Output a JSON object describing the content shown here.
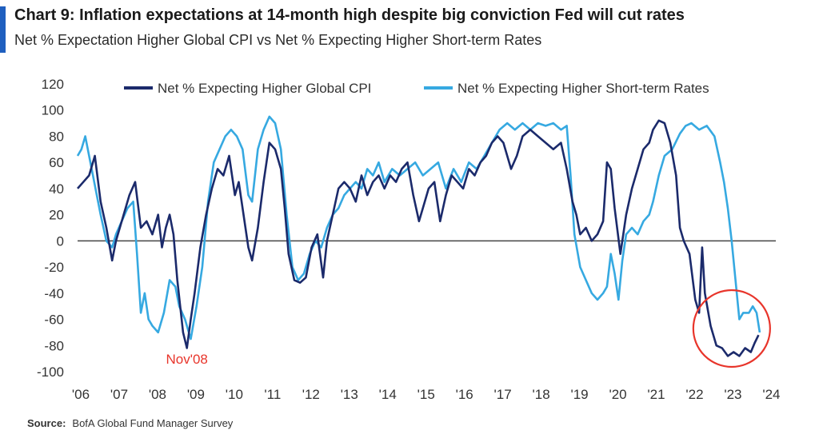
{
  "header": {
    "title": "Chart 9: Inflation expectations at 14-month  high despite big conviction Fed will cut rates",
    "subtitle": "Net % Expectation Higher Global CPI vs Net % Expecting Higher Short-term Rates",
    "accent_color": "#1f5fbf"
  },
  "footer": {
    "source_label": "Source:",
    "source_text": "BofA Global Fund Manager Survey"
  },
  "chart_data": {
    "type": "line",
    "title": "",
    "xlabel": "",
    "ylabel": "",
    "ylim": [
      -100,
      120
    ],
    "yticks": [
      -100,
      -80,
      -60,
      -40,
      -20,
      0,
      20,
      40,
      60,
      80,
      100,
      120
    ],
    "xlim": [
      2006,
      2024.2
    ],
    "xticks": [
      {
        "value": 2006,
        "label": "'06"
      },
      {
        "value": 2007,
        "label": "'07"
      },
      {
        "value": 2008,
        "label": "'08"
      },
      {
        "value": 2009,
        "label": "'09"
      },
      {
        "value": 2010,
        "label": "'10"
      },
      {
        "value": 2011,
        "label": "'11"
      },
      {
        "value": 2012,
        "label": "'12"
      },
      {
        "value": 2013,
        "label": "'13"
      },
      {
        "value": 2014,
        "label": "'14"
      },
      {
        "value": 2015,
        "label": "'15"
      },
      {
        "value": 2016,
        "label": "'16"
      },
      {
        "value": 2017,
        "label": "'17"
      },
      {
        "value": 2018,
        "label": "'18"
      },
      {
        "value": 2019,
        "label": "'19"
      },
      {
        "value": 2020,
        "label": "'20"
      },
      {
        "value": 2021,
        "label": "'21"
      },
      {
        "value": 2022,
        "label": "'22"
      },
      {
        "value": 2023,
        "label": "'23"
      },
      {
        "value": 2024,
        "label": "'24"
      }
    ],
    "grid": false,
    "zero_line": true,
    "legend_position": "top",
    "series": [
      {
        "name": "Net % Expecting Higher Global CPI",
        "color": "#1b2a6b",
        "points": [
          [
            2006.0,
            40
          ],
          [
            2006.15,
            45
          ],
          [
            2006.3,
            50
          ],
          [
            2006.45,
            65
          ],
          [
            2006.6,
            30
          ],
          [
            2006.75,
            10
          ],
          [
            2006.9,
            -15
          ],
          [
            2007.0,
            0
          ],
          [
            2007.2,
            20
          ],
          [
            2007.35,
            35
          ],
          [
            2007.5,
            45
          ],
          [
            2007.65,
            10
          ],
          [
            2007.8,
            15
          ],
          [
            2007.95,
            5
          ],
          [
            2008.1,
            20
          ],
          [
            2008.2,
            -5
          ],
          [
            2008.3,
            10
          ],
          [
            2008.4,
            20
          ],
          [
            2008.5,
            5
          ],
          [
            2008.6,
            -30
          ],
          [
            2008.75,
            -70
          ],
          [
            2008.85,
            -82
          ],
          [
            2008.95,
            -60
          ],
          [
            2009.05,
            -40
          ],
          [
            2009.2,
            -5
          ],
          [
            2009.35,
            20
          ],
          [
            2009.5,
            40
          ],
          [
            2009.65,
            55
          ],
          [
            2009.8,
            50
          ],
          [
            2009.95,
            65
          ],
          [
            2010.1,
            35
          ],
          [
            2010.2,
            45
          ],
          [
            2010.3,
            25
          ],
          [
            2010.45,
            -5
          ],
          [
            2010.55,
            -15
          ],
          [
            2010.7,
            10
          ],
          [
            2010.85,
            45
          ],
          [
            2011.0,
            75
          ],
          [
            2011.15,
            70
          ],
          [
            2011.3,
            55
          ],
          [
            2011.4,
            25
          ],
          [
            2011.5,
            -10
          ],
          [
            2011.65,
            -30
          ],
          [
            2011.8,
            -32
          ],
          [
            2011.95,
            -28
          ],
          [
            2012.1,
            -5
          ],
          [
            2012.25,
            5
          ],
          [
            2012.4,
            -28
          ],
          [
            2012.5,
            0
          ],
          [
            2012.65,
            20
          ],
          [
            2012.8,
            40
          ],
          [
            2012.95,
            45
          ],
          [
            2013.1,
            40
          ],
          [
            2013.25,
            30
          ],
          [
            2013.4,
            50
          ],
          [
            2013.55,
            35
          ],
          [
            2013.7,
            45
          ],
          [
            2013.85,
            50
          ],
          [
            2014.0,
            40
          ],
          [
            2014.15,
            50
          ],
          [
            2014.3,
            45
          ],
          [
            2014.45,
            55
          ],
          [
            2014.6,
            60
          ],
          [
            2014.75,
            35
          ],
          [
            2014.9,
            15
          ],
          [
            2015.0,
            25
          ],
          [
            2015.15,
            40
          ],
          [
            2015.3,
            45
          ],
          [
            2015.45,
            15
          ],
          [
            2015.6,
            35
          ],
          [
            2015.75,
            50
          ],
          [
            2015.9,
            45
          ],
          [
            2016.05,
            40
          ],
          [
            2016.2,
            55
          ],
          [
            2016.35,
            50
          ],
          [
            2016.5,
            60
          ],
          [
            2016.65,
            65
          ],
          [
            2016.8,
            75
          ],
          [
            2016.95,
            80
          ],
          [
            2017.1,
            75
          ],
          [
            2017.3,
            55
          ],
          [
            2017.45,
            65
          ],
          [
            2017.6,
            80
          ],
          [
            2017.8,
            85
          ],
          [
            2018.0,
            80
          ],
          [
            2018.2,
            75
          ],
          [
            2018.4,
            70
          ],
          [
            2018.6,
            75
          ],
          [
            2018.75,
            55
          ],
          [
            2018.9,
            30
          ],
          [
            2019.0,
            20
          ],
          [
            2019.1,
            5
          ],
          [
            2019.25,
            10
          ],
          [
            2019.4,
            0
          ],
          [
            2019.55,
            5
          ],
          [
            2019.7,
            15
          ],
          [
            2019.8,
            60
          ],
          [
            2019.9,
            55
          ],
          [
            2020.0,
            25
          ],
          [
            2020.15,
            -10
          ],
          [
            2020.3,
            20
          ],
          [
            2020.45,
            40
          ],
          [
            2020.6,
            55
          ],
          [
            2020.75,
            70
          ],
          [
            2020.9,
            75
          ],
          [
            2021.0,
            85
          ],
          [
            2021.15,
            92
          ],
          [
            2021.3,
            90
          ],
          [
            2021.45,
            75
          ],
          [
            2021.6,
            50
          ],
          [
            2021.7,
            10
          ],
          [
            2021.8,
            0
          ],
          [
            2021.95,
            -10
          ],
          [
            2022.1,
            -45
          ],
          [
            2022.2,
            -55
          ],
          [
            2022.28,
            -5
          ],
          [
            2022.35,
            -40
          ],
          [
            2022.5,
            -65
          ],
          [
            2022.65,
            -80
          ],
          [
            2022.8,
            -82
          ],
          [
            2022.95,
            -88
          ],
          [
            2023.1,
            -85
          ],
          [
            2023.25,
            -88
          ],
          [
            2023.4,
            -82
          ],
          [
            2023.55,
            -85
          ],
          [
            2023.65,
            -78
          ],
          [
            2023.75,
            -72
          ]
        ]
      },
      {
        "name": "Net % Expecting Higher Short-term Rates",
        "color": "#36a9e1",
        "points": [
          [
            2006.0,
            65
          ],
          [
            2006.1,
            70
          ],
          [
            2006.2,
            80
          ],
          [
            2006.3,
            65
          ],
          [
            2006.4,
            50
          ],
          [
            2006.5,
            35
          ],
          [
            2006.6,
            20
          ],
          [
            2006.75,
            0
          ],
          [
            2006.9,
            -5
          ],
          [
            2007.0,
            5
          ],
          [
            2007.15,
            15
          ],
          [
            2007.3,
            25
          ],
          [
            2007.45,
            30
          ],
          [
            2007.55,
            -10
          ],
          [
            2007.65,
            -55
          ],
          [
            2007.75,
            -40
          ],
          [
            2007.85,
            -60
          ],
          [
            2007.95,
            -65
          ],
          [
            2008.1,
            -70
          ],
          [
            2008.25,
            -55
          ],
          [
            2008.4,
            -30
          ],
          [
            2008.55,
            -35
          ],
          [
            2008.65,
            -50
          ],
          [
            2008.8,
            -60
          ],
          [
            2008.95,
            -75
          ],
          [
            2009.1,
            -50
          ],
          [
            2009.25,
            -20
          ],
          [
            2009.4,
            30
          ],
          [
            2009.55,
            60
          ],
          [
            2009.7,
            70
          ],
          [
            2009.85,
            80
          ],
          [
            2010.0,
            85
          ],
          [
            2010.15,
            80
          ],
          [
            2010.3,
            70
          ],
          [
            2010.45,
            35
          ],
          [
            2010.55,
            30
          ],
          [
            2010.7,
            70
          ],
          [
            2010.85,
            85
          ],
          [
            2011.0,
            95
          ],
          [
            2011.15,
            90
          ],
          [
            2011.3,
            70
          ],
          [
            2011.45,
            20
          ],
          [
            2011.6,
            -20
          ],
          [
            2011.75,
            -30
          ],
          [
            2011.9,
            -25
          ],
          [
            2012.05,
            -10
          ],
          [
            2012.2,
            0
          ],
          [
            2012.35,
            -5
          ],
          [
            2012.5,
            10
          ],
          [
            2012.65,
            20
          ],
          [
            2012.8,
            25
          ],
          [
            2012.95,
            35
          ],
          [
            2013.1,
            40
          ],
          [
            2013.25,
            45
          ],
          [
            2013.4,
            40
          ],
          [
            2013.55,
            55
          ],
          [
            2013.7,
            50
          ],
          [
            2013.85,
            60
          ],
          [
            2014.0,
            45
          ],
          [
            2014.2,
            55
          ],
          [
            2014.4,
            50
          ],
          [
            2014.6,
            55
          ],
          [
            2014.8,
            60
          ],
          [
            2015.0,
            50
          ],
          [
            2015.2,
            55
          ],
          [
            2015.4,
            60
          ],
          [
            2015.6,
            40
          ],
          [
            2015.8,
            55
          ],
          [
            2016.0,
            45
          ],
          [
            2016.2,
            60
          ],
          [
            2016.4,
            55
          ],
          [
            2016.6,
            65
          ],
          [
            2016.8,
            75
          ],
          [
            2017.0,
            85
          ],
          [
            2017.2,
            90
          ],
          [
            2017.4,
            85
          ],
          [
            2017.6,
            90
          ],
          [
            2017.8,
            85
          ],
          [
            2018.0,
            90
          ],
          [
            2018.2,
            88
          ],
          [
            2018.4,
            90
          ],
          [
            2018.6,
            85
          ],
          [
            2018.75,
            88
          ],
          [
            2018.85,
            50
          ],
          [
            2018.95,
            5
          ],
          [
            2019.1,
            -20
          ],
          [
            2019.25,
            -30
          ],
          [
            2019.4,
            -40
          ],
          [
            2019.55,
            -45
          ],
          [
            2019.7,
            -40
          ],
          [
            2019.8,
            -35
          ],
          [
            2019.9,
            -10
          ],
          [
            2020.0,
            -25
          ],
          [
            2020.1,
            -45
          ],
          [
            2020.2,
            -15
          ],
          [
            2020.3,
            5
          ],
          [
            2020.45,
            10
          ],
          [
            2020.6,
            5
          ],
          [
            2020.75,
            15
          ],
          [
            2020.9,
            20
          ],
          [
            2021.0,
            30
          ],
          [
            2021.15,
            50
          ],
          [
            2021.3,
            65
          ],
          [
            2021.5,
            70
          ],
          [
            2021.7,
            82
          ],
          [
            2021.85,
            88
          ],
          [
            2022.0,
            90
          ],
          [
            2022.2,
            85
          ],
          [
            2022.4,
            88
          ],
          [
            2022.6,
            80
          ],
          [
            2022.75,
            60
          ],
          [
            2022.85,
            45
          ],
          [
            2022.95,
            25
          ],
          [
            2023.05,
            0
          ],
          [
            2023.15,
            -30
          ],
          [
            2023.25,
            -60
          ],
          [
            2023.35,
            -55
          ],
          [
            2023.5,
            -55
          ],
          [
            2023.6,
            -50
          ],
          [
            2023.7,
            -55
          ],
          [
            2023.78,
            -70
          ]
        ]
      }
    ],
    "annotations": [
      {
        "text": "Nov'08",
        "x": 2008.85,
        "y": -89,
        "color": "#e8352b"
      }
    ],
    "highlight_circle": {
      "x": 2023.05,
      "y": -67,
      "color": "#e8352b"
    }
  }
}
